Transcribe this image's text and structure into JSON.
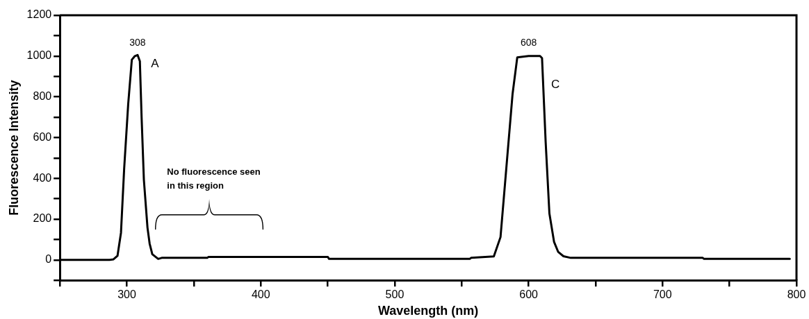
{
  "chart_data": {
    "type": "line",
    "xlabel": "Wavelength (nm)",
    "ylabel": "Fluorescence Intensity",
    "xlim": [
      250,
      800
    ],
    "ylim": [
      -100,
      1200
    ],
    "xticks": [
      {
        "value": 250,
        "label": null
      },
      300,
      {
        "value": 350,
        "label": null
      },
      400,
      {
        "value": 450,
        "label": null
      },
      500,
      {
        "value": 550,
        "label": null
      },
      600,
      {
        "value": 650,
        "label": null
      },
      700,
      {
        "value": 750,
        "label": null
      },
      800
    ],
    "yticks": [
      {
        "value": -100,
        "label": null
      },
      0,
      {
        "value": 100,
        "label": null
      },
      200,
      {
        "value": 300,
        "label": null
      },
      400,
      {
        "value": 500,
        "label": null
      },
      600,
      {
        "value": 700,
        "label": null
      },
      800,
      {
        "value": 900,
        "label": null
      },
      1000,
      {
        "value": 1100,
        "label": null
      },
      1200
    ],
    "grid": false,
    "legend": false,
    "marker": "none",
    "line_style": "solid",
    "series": [
      {
        "color": "#000000",
        "x": [
          250,
          287,
          290,
          293,
          295.6,
          298,
          301,
          303.7,
          306,
          308,
          309.7,
          311,
          312.7,
          315.4,
          317,
          319,
          323.4,
          326,
          360,
          361,
          450,
          451,
          556,
          557,
          574,
          579,
          583.5,
          588,
          591.5,
          600,
          608.5,
          610,
          612.7,
          615.5,
          619,
          622,
          626,
          631.5,
          730,
          731,
          795
        ],
        "values": [
          0,
          0,
          3,
          20,
          133,
          450,
          765,
          982,
          1000,
          1005,
          975,
          700,
          393,
          158,
          80,
          28,
          5,
          10,
          10,
          15,
          15,
          5,
          5,
          10,
          17,
          112,
          463,
          814,
          993,
          1000,
          1000,
          990,
          579,
          228,
          88,
          40,
          18,
          10,
          10,
          5,
          5
        ]
      }
    ],
    "annotations": [
      "308",
      "A",
      "608",
      "C",
      "No fluorescence seen in this region"
    ]
  }
}
